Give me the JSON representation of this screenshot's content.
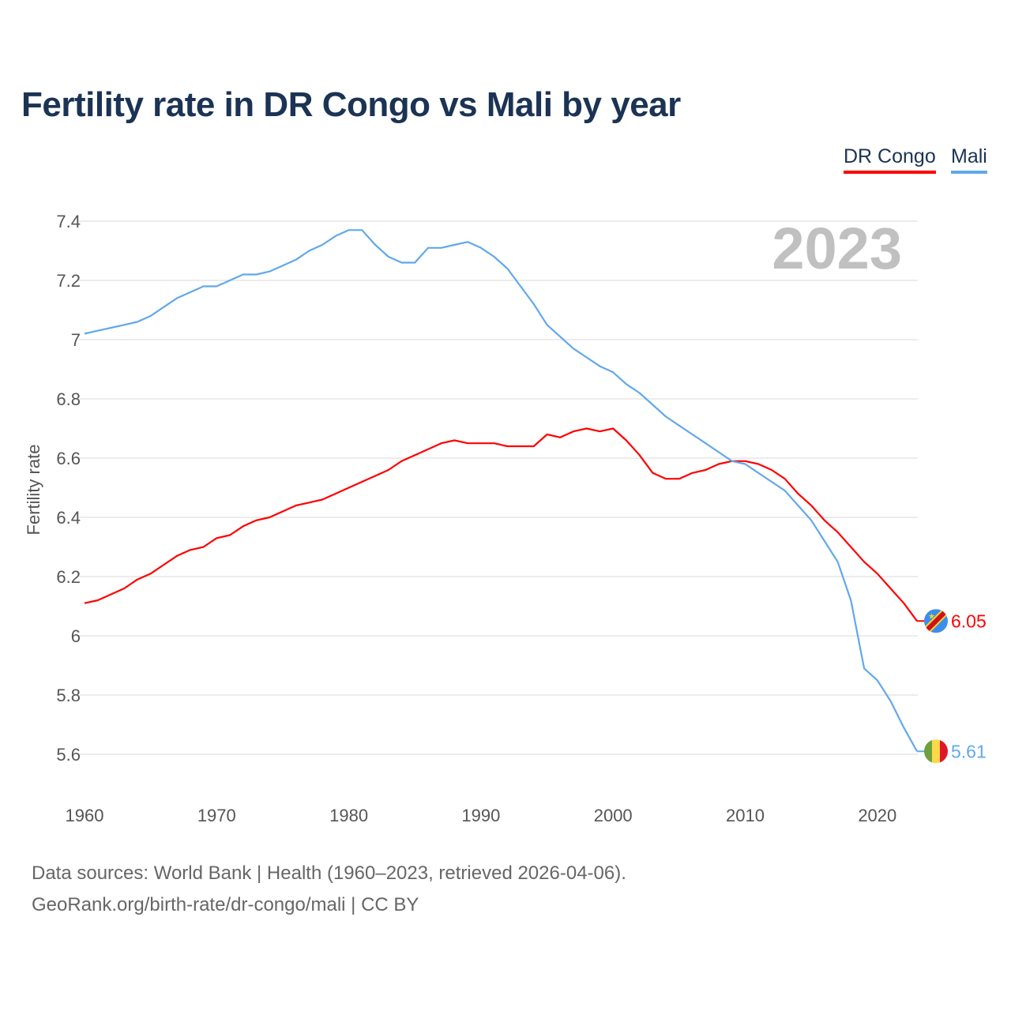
{
  "title": "Fertility rate in DR Congo vs Mali by year",
  "year_label": "2023",
  "footer": {
    "line1": "Data sources: World Bank | Health (1960–2023, retrieved 2026-04-06).",
    "line2": "GeoRank.org/birth-rate/dr-congo/mali | CC BY"
  },
  "chart_data": {
    "type": "line",
    "title": "Fertility rate in DR Congo vs Mali by year",
    "xlabel": "",
    "ylabel": "Fertility rate",
    "xlim": [
      1960,
      2023
    ],
    "ylim": [
      5.5,
      7.45
    ],
    "grid": true,
    "legend_position": "top-right",
    "yticks": [
      5.6,
      5.8,
      6,
      6.2,
      6.4,
      6.6,
      6.8,
      7,
      7.2,
      7.4
    ],
    "ytick_labels": [
      "5.6",
      "5.8",
      "6",
      "6.2",
      "6.4",
      "6.6",
      "6.8",
      "7",
      "7.2",
      "7.4"
    ],
    "xticks": [
      1960,
      1970,
      1980,
      1990,
      2000,
      2010,
      2020
    ],
    "xtick_labels": [
      "1960",
      "1970",
      "1980",
      "1990",
      "2000",
      "2010",
      "2020"
    ],
    "x_start": 1960,
    "series": [
      {
        "name": "DR Congo",
        "color": "#ff0000",
        "end_label": "6.05",
        "flag": "dr-congo-flag",
        "values": [
          6.11,
          6.12,
          6.14,
          6.16,
          6.19,
          6.21,
          6.24,
          6.27,
          6.29,
          6.3,
          6.33,
          6.34,
          6.37,
          6.39,
          6.4,
          6.42,
          6.44,
          6.45,
          6.46,
          6.48,
          6.5,
          6.52,
          6.54,
          6.56,
          6.59,
          6.61,
          6.63,
          6.65,
          6.66,
          6.65,
          6.65,
          6.65,
          6.64,
          6.64,
          6.64,
          6.68,
          6.67,
          6.69,
          6.7,
          6.69,
          6.7,
          6.66,
          6.61,
          6.55,
          6.53,
          6.53,
          6.55,
          6.56,
          6.58,
          6.59,
          6.59,
          6.58,
          6.56,
          6.53,
          6.48,
          6.44,
          6.39,
          6.35,
          6.3,
          6.25,
          6.21,
          6.16,
          6.11,
          6.05
        ]
      },
      {
        "name": "Mali",
        "color": "#61a8ec",
        "end_label": "5.61",
        "flag": "mali-flag",
        "values": [
          7.02,
          7.03,
          7.04,
          7.05,
          7.06,
          7.08,
          7.11,
          7.14,
          7.16,
          7.18,
          7.18,
          7.2,
          7.22,
          7.22,
          7.23,
          7.25,
          7.27,
          7.3,
          7.32,
          7.35,
          7.37,
          7.37,
          7.32,
          7.28,
          7.26,
          7.26,
          7.31,
          7.31,
          7.32,
          7.33,
          7.31,
          7.28,
          7.24,
          7.18,
          7.12,
          7.05,
          7.01,
          6.97,
          6.94,
          6.91,
          6.89,
          6.85,
          6.82,
          6.78,
          6.74,
          6.71,
          6.68,
          6.65,
          6.62,
          6.59,
          6.58,
          6.55,
          6.52,
          6.49,
          6.44,
          6.39,
          6.32,
          6.25,
          6.12,
          5.89,
          5.85,
          5.78,
          5.69,
          5.61
        ]
      }
    ]
  }
}
